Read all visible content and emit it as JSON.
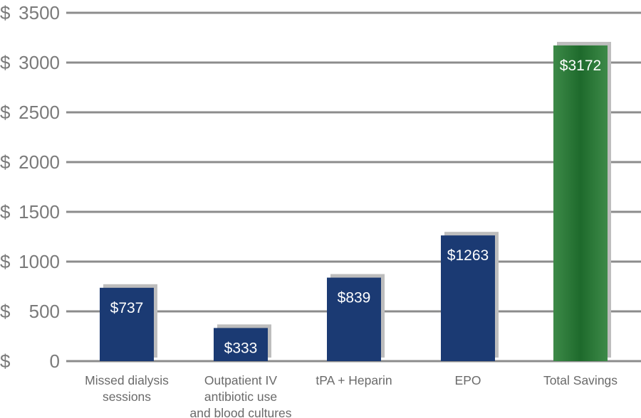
{
  "chart_data": {
    "type": "bar",
    "title": "",
    "xlabel": "",
    "ylabel": "",
    "ylim": [
      0,
      3500
    ],
    "grid": true,
    "y_ticks": [
      {
        "value": 0,
        "currency": "$",
        "number": "0"
      },
      {
        "value": 500,
        "currency": "$",
        "number": "500"
      },
      {
        "value": 1000,
        "currency": "$",
        "number": "1000"
      },
      {
        "value": 1500,
        "currency": "$",
        "number": "1500"
      },
      {
        "value": 2000,
        "currency": "$",
        "number": "2000"
      },
      {
        "value": 2500,
        "currency": "$",
        "number": "2500"
      },
      {
        "value": 3000,
        "currency": "$",
        "number": "3000"
      },
      {
        "value": 3500,
        "currency": "$",
        "number": "3500"
      }
    ],
    "categories": [
      [
        "Missed dialysis",
        "sessions"
      ],
      [
        "Outpatient IV",
        "antibiotic use",
        "and blood cultures"
      ],
      [
        "tPA + Heparin"
      ],
      [
        "EPO"
      ],
      [
        "Total Savings"
      ]
    ],
    "values": [
      737,
      333,
      839,
      1263,
      3172
    ],
    "value_labels": [
      "$737",
      "$333",
      "$839",
      "$1263",
      "$3172"
    ],
    "colors": [
      "#1b3a73",
      "#1b3a73",
      "#1b3a73",
      "#1b3a73",
      "#1f6b2e"
    ],
    "shadow_color": "#bdbdbd",
    "grid_color": "#8c8c8c"
  }
}
